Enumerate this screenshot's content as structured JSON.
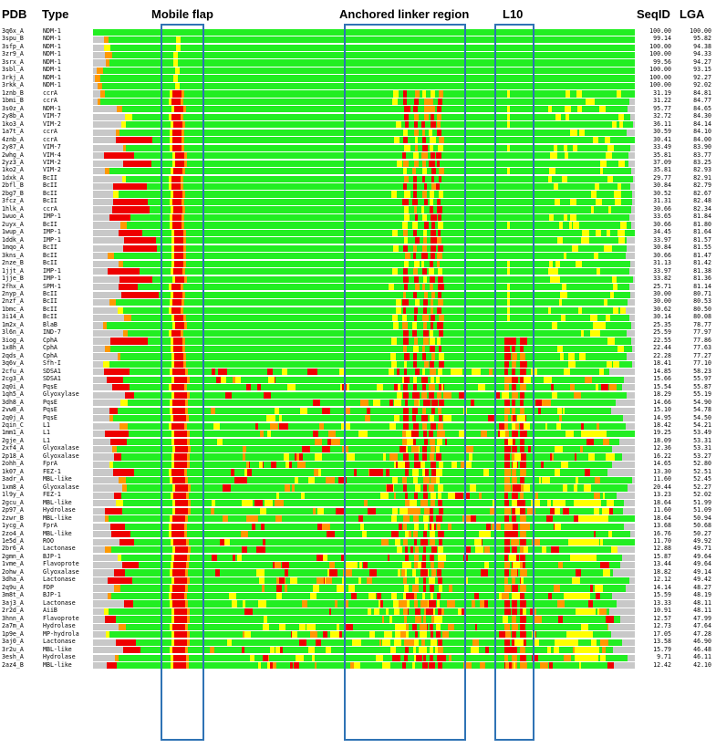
{
  "headers": {
    "pdb": "PDB",
    "type": "Type",
    "seqid": "SeqID",
    "lga": "LGA"
  },
  "regions": [
    {
      "label": "Mobile flap"
    },
    {
      "label": "Anchored linker region"
    },
    {
      "label": "L10"
    }
  ],
  "colors": {
    "green": "#22ee22",
    "yellow": "#ffff00",
    "orange": "#ff9900",
    "red": "#ee0000",
    "gray": "#c8c8c8",
    "region_box": "#2f73b5"
  },
  "rows": [
    {
      "pdb": "3q6x_A",
      "type": "NDM-1",
      "seqid": "100.00",
      "lga": "100.00"
    },
    {
      "pdb": "3spu_B",
      "type": "NDM-1",
      "seqid": "99.14",
      "lga": "95.82"
    },
    {
      "pdb": "3sfp_A",
      "type": "NDM-1",
      "seqid": "100.00",
      "lga": "94.38"
    },
    {
      "pdb": "3zr9_A",
      "type": "NDM-1",
      "seqid": "100.00",
      "lga": "94.33"
    },
    {
      "pdb": "3srx_A",
      "type": "NDM-1",
      "seqid": "99.56",
      "lga": "94.27"
    },
    {
      "pdb": "3sbl_A",
      "type": "NDM-1",
      "seqid": "100.00",
      "lga": "93.15"
    },
    {
      "pdb": "3rkj_A",
      "type": "NDM-1",
      "seqid": "100.00",
      "lga": "92.27"
    },
    {
      "pdb": "3rkk_A",
      "type": "NDM-1",
      "seqid": "100.00",
      "lga": "92.02"
    },
    {
      "pdb": "1znb_B",
      "type": "ccrA",
      "seqid": "31.19",
      "lga": "84.81"
    },
    {
      "pdb": "1bmi_B",
      "type": "ccrA",
      "seqid": "31.22",
      "lga": "84.77"
    },
    {
      "pdb": "3s0z_A",
      "type": "NDM-1",
      "seqid": "95.77",
      "lga": "84.65"
    },
    {
      "pdb": "2y8b_A",
      "type": "VIM-7",
      "seqid": "32.72",
      "lga": "84.30"
    },
    {
      "pdb": "1ko3_A",
      "type": "VIM-2",
      "seqid": "36.11",
      "lga": "84.14"
    },
    {
      "pdb": "1a7t_A",
      "type": "ccrA",
      "seqid": "30.59",
      "lga": "84.10"
    },
    {
      "pdb": "4znb_A",
      "type": "ccrA",
      "seqid": "30.41",
      "lga": "84.00"
    },
    {
      "pdb": "2y87_A",
      "type": "VIM-7",
      "seqid": "33.49",
      "lga": "83.90"
    },
    {
      "pdb": "2whg_A",
      "type": "VIM-4",
      "seqid": "35.81",
      "lga": "83.77"
    },
    {
      "pdb": "2yz3_A",
      "type": "VIM-2",
      "seqid": "37.09",
      "lga": "83.25"
    },
    {
      "pdb": "1ko2_A",
      "type": "VIM-2",
      "seqid": "35.81",
      "lga": "82.93"
    },
    {
      "pdb": "1dxk_A",
      "type": "BcII",
      "seqid": "29.77",
      "lga": "82.91"
    },
    {
      "pdb": "2bfl_B",
      "type": "BcII",
      "seqid": "30.84",
      "lga": "82.79"
    },
    {
      "pdb": "2bg7_B",
      "type": "BcII",
      "seqid": "30.52",
      "lga": "82.67"
    },
    {
      "pdb": "3fcz_A",
      "type": "BcII",
      "seqid": "31.31",
      "lga": "82.48"
    },
    {
      "pdb": "1hlk_A",
      "type": "ccrA",
      "seqid": "30.66",
      "lga": "82.34"
    },
    {
      "pdb": "1wuo_A",
      "type": "IMP-1",
      "seqid": "33.65",
      "lga": "81.84"
    },
    {
      "pdb": "2uyx_A",
      "type": "BcII",
      "seqid": "30.66",
      "lga": "81.80"
    },
    {
      "pdb": "1wup_A",
      "type": "IMP-1",
      "seqid": "34.45",
      "lga": "81.64"
    },
    {
      "pdb": "1ddk_A",
      "type": "IMP-1",
      "seqid": "33.97",
      "lga": "81.57"
    },
    {
      "pdb": "1mqo_A",
      "type": "BcII",
      "seqid": "30.84",
      "lga": "81.55"
    },
    {
      "pdb": "3kns_A",
      "type": "BcII",
      "seqid": "30.66",
      "lga": "81.47"
    },
    {
      "pdb": "2nze_B",
      "type": "BcII",
      "seqid": "31.13",
      "lga": "81.42"
    },
    {
      "pdb": "1jjt_A",
      "type": "IMP-1",
      "seqid": "33.97",
      "lga": "81.38"
    },
    {
      "pdb": "1jje_B",
      "type": "IMP-1",
      "seqid": "33.82",
      "lga": "81.36"
    },
    {
      "pdb": "2fhx_A",
      "type": "SPM-1",
      "seqid": "25.71",
      "lga": "81.14"
    },
    {
      "pdb": "2nyp_A",
      "type": "BcII",
      "seqid": "30.00",
      "lga": "80.71"
    },
    {
      "pdb": "2nzf_A",
      "type": "BcII",
      "seqid": "30.00",
      "lga": "80.53"
    },
    {
      "pdb": "1bmc_A",
      "type": "BcII",
      "seqid": "30.62",
      "lga": "80.50"
    },
    {
      "pdb": "3i14_A",
      "type": "BcII",
      "seqid": "30.14",
      "lga": "80.08"
    },
    {
      "pdb": "1m2x_A",
      "type": "BlaB",
      "seqid": "25.35",
      "lga": "78.77"
    },
    {
      "pdb": "3l6n_A",
      "type": "IND-7",
      "seqid": "25.59",
      "lga": "77.97"
    },
    {
      "pdb": "3iog_A",
      "type": "CphA",
      "seqid": "22.55",
      "lga": "77.86"
    },
    {
      "pdb": "1x8h_A",
      "type": "CphA",
      "seqid": "22.44",
      "lga": "77.63"
    },
    {
      "pdb": "2qds_A",
      "type": "CphA",
      "seqid": "22.28",
      "lga": "77.27"
    },
    {
      "pdb": "3q6v_A",
      "type": "Sfh-I",
      "seqid": "18.41",
      "lga": "77.10"
    },
    {
      "pdb": "2cfu_A",
      "type": "SDSA1",
      "seqid": "14.85",
      "lga": "58.23"
    },
    {
      "pdb": "2cg3_A",
      "type": "SDSA1",
      "seqid": "15.66",
      "lga": "55.97"
    },
    {
      "pdb": "2q0i_A",
      "type": "PqsE",
      "seqid": "15.54",
      "lga": "55.87"
    },
    {
      "pdb": "1qh5_A",
      "type": "Glyoxylase",
      "seqid": "18.29",
      "lga": "55.19"
    },
    {
      "pdb": "3dh8_A",
      "type": "PqsE",
      "seqid": "14.66",
      "lga": "54.90"
    },
    {
      "pdb": "2vw8_A",
      "type": "PqsE",
      "seqid": "15.10",
      "lga": "54.78"
    },
    {
      "pdb": "2q0j_A",
      "type": "PqsE",
      "seqid": "14.95",
      "lga": "54.50"
    },
    {
      "pdb": "2qin_C",
      "type": "L1",
      "seqid": "18.42",
      "lga": "54.21"
    },
    {
      "pdb": "1mm1_A",
      "type": "L1",
      "seqid": "19.25",
      "lga": "53.49"
    },
    {
      "pdb": "2gje_A",
      "type": "L1",
      "seqid": "18.09",
      "lga": "53.31"
    },
    {
      "pdb": "2xf4_A",
      "type": "Glyoxalase",
      "seqid": "12.36",
      "lga": "53.31"
    },
    {
      "pdb": "2p18_A",
      "type": "Glyoxalase",
      "seqid": "16.22",
      "lga": "53.27"
    },
    {
      "pdb": "2ohh_A",
      "type": "FprA",
      "seqid": "14.65",
      "lga": "52.80"
    },
    {
      "pdb": "1k07_A",
      "type": "FEZ-1",
      "seqid": "13.30",
      "lga": "52.51"
    },
    {
      "pdb": "3adr_A",
      "type": "MBL-like",
      "seqid": "11.60",
      "lga": "52.45"
    },
    {
      "pdb": "1xm8_A",
      "type": "Glyoxalase",
      "seqid": "20.44",
      "lga": "52.27"
    },
    {
      "pdb": "1l9y_A",
      "type": "FEZ-1",
      "seqid": "13.23",
      "lga": "52.02"
    },
    {
      "pdb": "2gcu_A",
      "type": "MBL-like",
      "seqid": "18.64",
      "lga": "51.99"
    },
    {
      "pdb": "2p97_A",
      "type": "Hydrolase",
      "seqid": "11.60",
      "lga": "51.09"
    },
    {
      "pdb": "2zwr_B",
      "type": "MBL-like",
      "seqid": "18.64",
      "lga": "50.94"
    },
    {
      "pdb": "1ycg_A",
      "type": "FprA",
      "seqid": "13.68",
      "lga": "50.68"
    },
    {
      "pdb": "2zo4_A",
      "type": "MBL-like",
      "seqid": "16.76",
      "lga": "50.27"
    },
    {
      "pdb": "1e5d_A",
      "type": "ROO",
      "seqid": "11.70",
      "lga": "49.92"
    },
    {
      "pdb": "2br6_A",
      "type": "Lactonase",
      "seqid": "12.88",
      "lga": "49.71"
    },
    {
      "pdb": "2gmn_A",
      "type": "BJP-1",
      "seqid": "15.87",
      "lga": "49.64"
    },
    {
      "pdb": "1vme_A",
      "type": "Flavoprote",
      "seqid": "13.44",
      "lga": "49.64"
    },
    {
      "pdb": "2ohw_A",
      "type": "Glyoxalase",
      "seqid": "18.82",
      "lga": "49.14"
    },
    {
      "pdb": "3dha_A",
      "type": "Lactonase",
      "seqid": "12.12",
      "lga": "49.42"
    },
    {
      "pdb": "2q9u_A",
      "type": "FDP",
      "seqid": "14.14",
      "lga": "48.27"
    },
    {
      "pdb": "3m8t_A",
      "type": "BJP-1",
      "seqid": "15.59",
      "lga": "48.19"
    },
    {
      "pdb": "3aj3_A",
      "type": "Lactonase",
      "seqid": "13.33",
      "lga": "48.11"
    },
    {
      "pdb": "2r2d_A",
      "type": "AiiB",
      "seqid": "10.91",
      "lga": "48.11"
    },
    {
      "pdb": "3hnn_A",
      "type": "Flavoprote",
      "seqid": "12.57",
      "lga": "47.99"
    },
    {
      "pdb": "2a7m_A",
      "type": "Hydrolase",
      "seqid": "12.73",
      "lga": "47.64"
    },
    {
      "pdb": "1p9e_A",
      "type": "MP-hydrola",
      "seqid": "17.05",
      "lga": "47.28"
    },
    {
      "pdb": "3aj0_A",
      "type": "Lactonase",
      "seqid": "13.58",
      "lga": "46.90"
    },
    {
      "pdb": "3r2u_A",
      "type": "MBL-like",
      "seqid": "15.79",
      "lga": "46.48"
    },
    {
      "pdb": "3esh_A",
      "type": "Hydrolase",
      "seqid": "9.71",
      "lga": "46.11"
    },
    {
      "pdb": "2az4_B",
      "type": "MBL-like",
      "seqid": "12.42",
      "lga": "42.10"
    }
  ]
}
